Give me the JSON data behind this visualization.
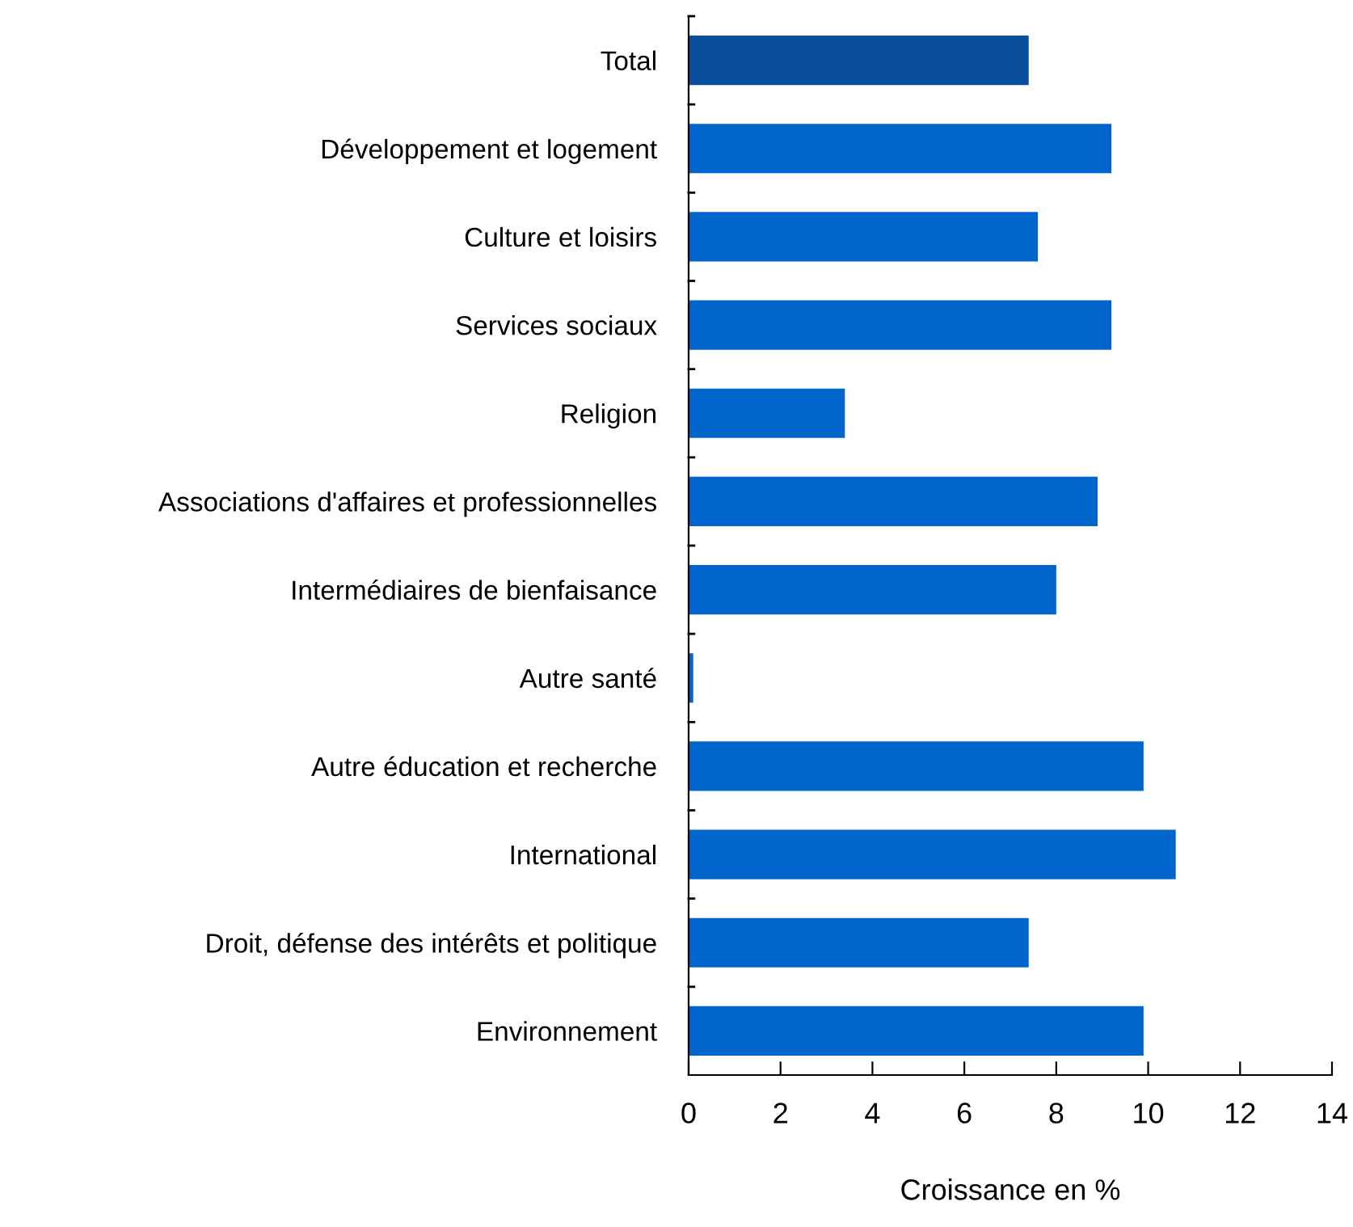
{
  "chart_data": {
    "type": "bar",
    "orientation": "horizontal",
    "categories": [
      "Total",
      "Développement et logement",
      "Culture et loisirs",
      "Services sociaux",
      "Religion",
      "Associations d'affaires et professionnelles",
      "Intermédiaires de bienfaisance",
      "Autre santé",
      "Autre éducation et recherche",
      "International",
      "Droit, défense des intérêts et politique",
      "Environnement"
    ],
    "values": [
      7.4,
      9.2,
      7.6,
      9.2,
      3.4,
      8.9,
      8.0,
      0.1,
      9.9,
      10.6,
      7.4,
      9.9
    ],
    "colors": [
      "#0a4f9e",
      "#0066cc",
      "#0066cc",
      "#0066cc",
      "#0066cc",
      "#0066cc",
      "#0066cc",
      "#0066cc",
      "#0066cc",
      "#0066cc",
      "#0066cc",
      "#0066cc"
    ],
    "xlabel": "Croissance en %",
    "xlim": [
      0,
      14
    ],
    "xticks": [
      0,
      2,
      4,
      6,
      8,
      10,
      12,
      14
    ],
    "grid": false,
    "legend": false
  }
}
